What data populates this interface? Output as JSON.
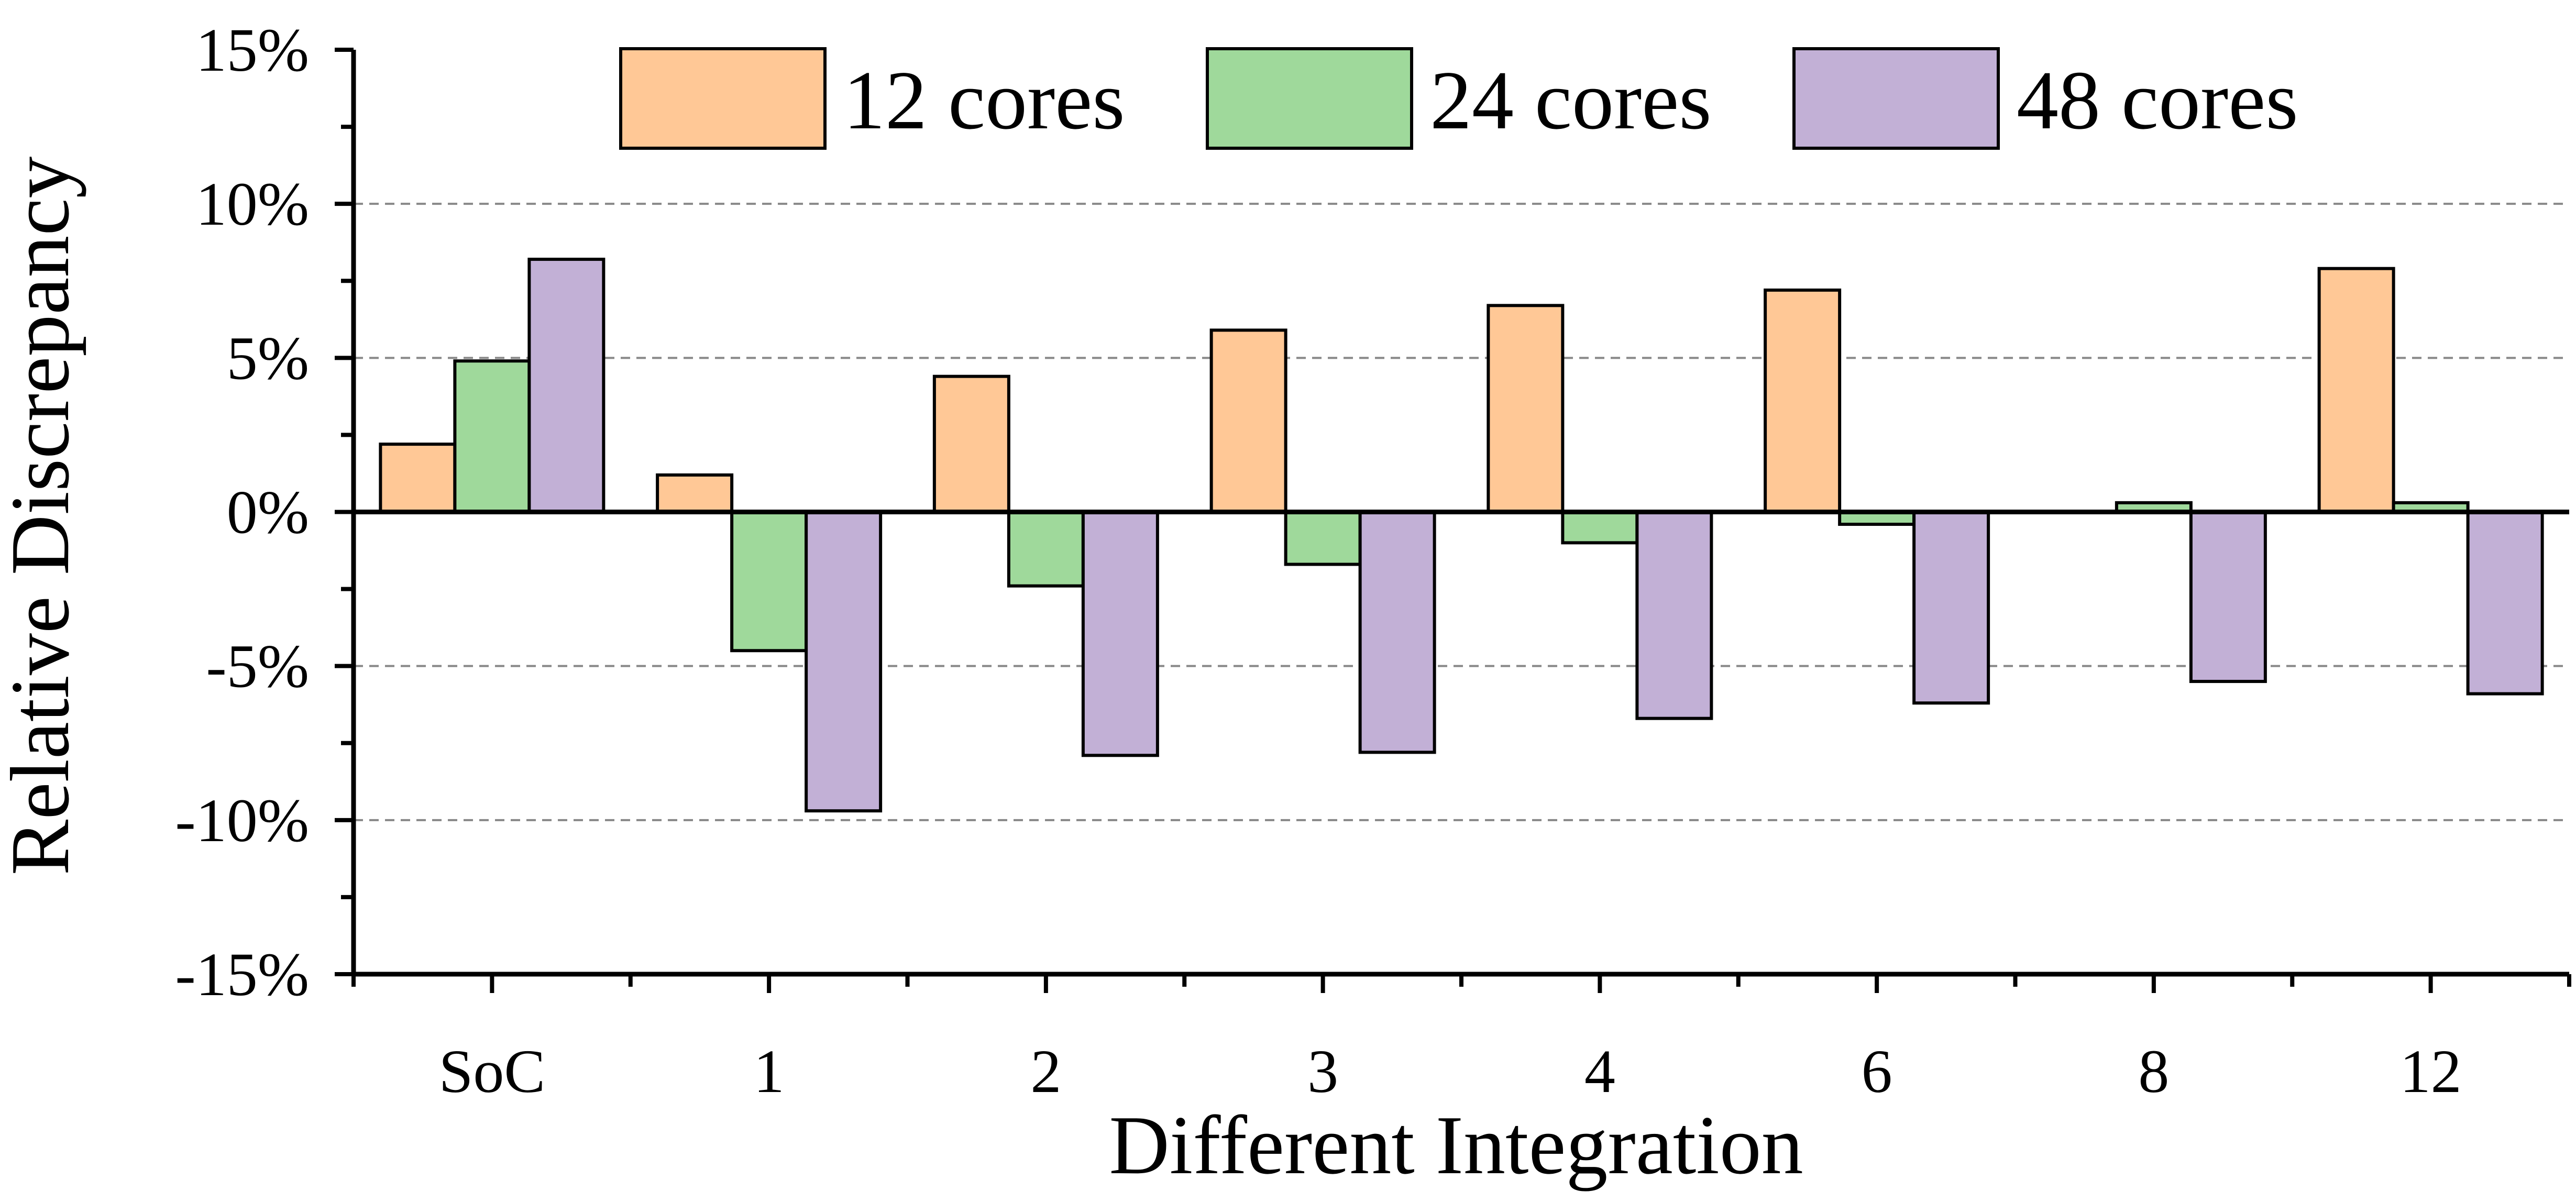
{
  "chart_data": {
    "type": "bar",
    "title": "",
    "xlabel": "Different Integration",
    "ylabel": "Relative Discrepancy",
    "categories": [
      "SoC",
      "1",
      "2",
      "3",
      "4",
      "6",
      "8",
      "12"
    ],
    "series": [
      {
        "name": "12 cores",
        "color": "#FFC896",
        "values": [
          2.2,
          1.2,
          4.4,
          5.9,
          6.7,
          7.2,
          0.0,
          7.9
        ]
      },
      {
        "name": "24 cores",
        "color": "#9FD99B",
        "values": [
          4.9,
          -4.5,
          -2.4,
          -1.7,
          -1.0,
          -0.4,
          0.3,
          0.3
        ]
      },
      {
        "name": "48 cores",
        "color": "#C2B0D6",
        "values": [
          8.2,
          -9.7,
          -7.9,
          -7.8,
          -6.7,
          -6.2,
          -5.5,
          -5.9
        ]
      }
    ],
    "ylim": [
      -15,
      15
    ],
    "yticks": [
      -15,
      -10,
      -5,
      0,
      5,
      10,
      15
    ],
    "ytick_labels": [
      "-15%",
      "-10%",
      "-5%",
      "0%",
      "5%",
      "10%",
      "15%"
    ],
    "grid": "horizontal dashed",
    "legend_position": "top"
  }
}
